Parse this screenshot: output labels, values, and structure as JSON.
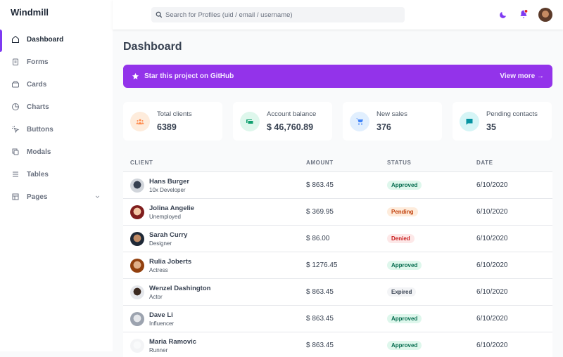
{
  "brand": "Windmill",
  "search_placeholder": "Search for Profiles (uid / email / username)",
  "nav": [
    "Dashboard",
    "Forms",
    "Cards",
    "Charts",
    "Buttons",
    "Modals",
    "Tables",
    "Pages"
  ],
  "page_title": "Dashboard",
  "banner": {
    "text": "Star this project on GitHub",
    "link": "View more →"
  },
  "stats": [
    {
      "label": "Total clients",
      "value": "6389"
    },
    {
      "label": "Account balance",
      "value": "$ 46,760.89"
    },
    {
      "label": "New sales",
      "value": "376"
    },
    {
      "label": "Pending contacts",
      "value": "35"
    }
  ],
  "table": {
    "columns": [
      "CLIENT",
      "AMOUNT",
      "STATUS",
      "DATE"
    ],
    "rows": [
      {
        "name": "Hans Burger",
        "role": "10x Developer",
        "amount": "$ 863.45",
        "status": "Approved",
        "date": "6/10/2020"
      },
      {
        "name": "Jolina Angelie",
        "role": "Unemployed",
        "amount": "$ 369.95",
        "status": "Pending",
        "date": "6/10/2020"
      },
      {
        "name": "Sarah Curry",
        "role": "Designer",
        "amount": "$ 86.00",
        "status": "Denied",
        "date": "6/10/2020"
      },
      {
        "name": "Rulia Joberts",
        "role": "Actress",
        "amount": "$ 1276.45",
        "status": "Approved",
        "date": "6/10/2020"
      },
      {
        "name": "Wenzel Dashington",
        "role": "Actor",
        "amount": "$ 863.45",
        "status": "Expired",
        "date": "6/10/2020"
      },
      {
        "name": "Dave Li",
        "role": "Influencer",
        "amount": "$ 863.45",
        "status": "Approved",
        "date": "6/10/2020"
      },
      {
        "name": "Maria Ramovic",
        "role": "Runner",
        "amount": "$ 863.45",
        "status": "Approved",
        "date": "6/10/2020"
      }
    ]
  }
}
